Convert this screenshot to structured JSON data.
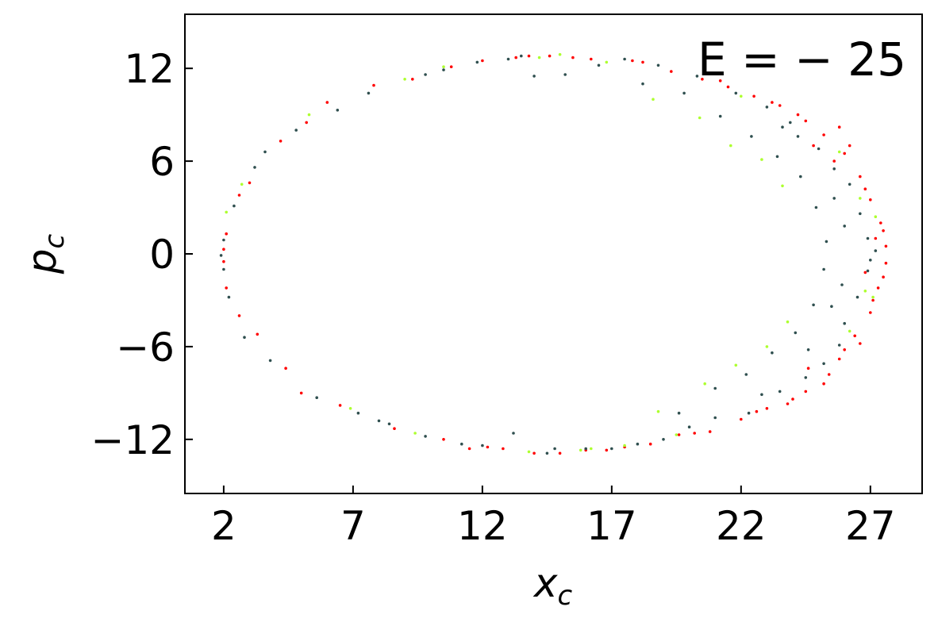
{
  "chart_data": {
    "type": "scatter",
    "xlabel": "x",
    "xlabel_sub": "c",
    "ylabel": "p",
    "ylabel_sub": "c",
    "annotation": "E = − 25",
    "xlim": [
      0.5,
      29
    ],
    "ylim": [
      -15.5,
      15.5
    ],
    "xticks": [
      2,
      7,
      12,
      17,
      22,
      27
    ],
    "yticks": [
      12,
      6,
      0,
      -6,
      -12
    ],
    "ytick_labels": [
      "12",
      "6",
      "0",
      "−6",
      "−12"
    ],
    "grid": false,
    "colors": {
      "red": "#ff0000",
      "dark": "#2f4f4f",
      "lime": "#adff2f"
    },
    "series": [
      {
        "color_key": "red",
        "points": [
          [
            2.0,
            0.3
          ],
          [
            2.0,
            -0.5
          ],
          [
            2.1,
            1.3
          ],
          [
            2.1,
            -2.2
          ],
          [
            2.6,
            3.8
          ],
          [
            2.6,
            -4.0
          ],
          [
            3.0,
            4.6
          ],
          [
            3.3,
            -5.2
          ],
          [
            4.2,
            7.3
          ],
          [
            4.4,
            -7.4
          ],
          [
            5.2,
            8.5
          ],
          [
            5.0,
            -9.0
          ],
          [
            6.0,
            9.8
          ],
          [
            6.5,
            -9.8
          ],
          [
            7.8,
            10.9
          ],
          [
            8.6,
            -11.3
          ],
          [
            9.3,
            11.3
          ],
          [
            10.5,
            -12.0
          ],
          [
            10.8,
            12.1
          ],
          [
            11.5,
            -12.6
          ],
          [
            12.0,
            12.5
          ],
          [
            12.8,
            -12.6
          ],
          [
            13.3,
            12.7
          ],
          [
            14.0,
            -12.9
          ],
          [
            14.6,
            12.8
          ],
          [
            15.0,
            -12.9
          ],
          [
            15.5,
            12.7
          ],
          [
            16.8,
            -12.7
          ],
          [
            16.2,
            12.6
          ],
          [
            17.5,
            -12.5
          ],
          [
            17.8,
            12.5
          ],
          [
            18.5,
            -12.3
          ],
          [
            19.3,
            11.8
          ],
          [
            19.6,
            -11.7
          ],
          [
            20.5,
            11.3
          ],
          [
            20.8,
            -11.5
          ],
          [
            21.5,
            10.8
          ],
          [
            22.0,
            -10.7
          ],
          [
            22.5,
            10.2
          ],
          [
            23.0,
            -10.0
          ],
          [
            23.5,
            9.6
          ],
          [
            24.0,
            -9.4
          ],
          [
            24.5,
            8.6
          ],
          [
            24.5,
            -8.9
          ],
          [
            25.2,
            7.7
          ],
          [
            25.4,
            -7.8
          ],
          [
            26.0,
            6.5
          ],
          [
            25.8,
            -6.8
          ],
          [
            26.6,
            5.0
          ],
          [
            26.4,
            -5.3
          ],
          [
            27.0,
            3.5
          ],
          [
            27.0,
            -3.8
          ],
          [
            27.4,
            2.0
          ],
          [
            27.3,
            -2.2
          ],
          [
            27.6,
            0.5
          ],
          [
            27.6,
            -0.6
          ],
          [
            27.2,
            1.0
          ],
          [
            26.8,
            -1.2
          ],
          [
            26.2,
            7.0
          ],
          [
            26.6,
            -5.8
          ],
          [
            25.8,
            8.2
          ],
          [
            25.2,
            -8.4
          ],
          [
            24.2,
            9.0
          ],
          [
            23.8,
            -9.7
          ],
          [
            23.2,
            9.8
          ],
          [
            22.6,
            -10.2
          ],
          [
            26.8,
            4.2
          ],
          [
            27.1,
            -3.0
          ],
          [
            27.5,
            1.5
          ],
          [
            27.5,
            -1.5
          ],
          [
            21.2,
            11.2
          ],
          [
            20.2,
            -11.6
          ],
          [
            18.2,
            12.4
          ],
          [
            16.0,
            -12.7
          ],
          [
            13.8,
            12.8
          ],
          [
            12.2,
            -12.5
          ],
          [
            25.6,
            6.0
          ],
          [
            26.0,
            -6.2
          ],
          [
            24.8,
            7.0
          ],
          [
            24.6,
            -7.4
          ]
        ]
      },
      {
        "color_key": "dark",
        "points": [
          [
            1.9,
            -0.1
          ],
          [
            2.0,
            -1.0
          ],
          [
            2.0,
            0.9
          ],
          [
            2.2,
            -2.8
          ],
          [
            2.4,
            3.1
          ],
          [
            2.8,
            -5.4
          ],
          [
            3.2,
            5.6
          ],
          [
            3.8,
            -6.9
          ],
          [
            3.6,
            6.6
          ],
          [
            5.6,
            -9.3
          ],
          [
            4.8,
            8.0
          ],
          [
            7.2,
            -10.3
          ],
          [
            6.4,
            9.3
          ],
          [
            8.4,
            -11.0
          ],
          [
            7.6,
            10.4
          ],
          [
            9.8,
            -11.8
          ],
          [
            9.8,
            11.6
          ],
          [
            12.0,
            -12.4
          ],
          [
            11.8,
            12.4
          ],
          [
            13.2,
            -11.6
          ],
          [
            13.0,
            12.6
          ],
          [
            14.0,
            11.5
          ],
          [
            14.5,
            -12.9
          ],
          [
            15.2,
            11.6
          ],
          [
            16.0,
            -12.6
          ],
          [
            16.5,
            12.2
          ],
          [
            18.0,
            -12.3
          ],
          [
            17.5,
            12.6
          ],
          [
            19.0,
            -12.0
          ],
          [
            18.8,
            12.2
          ],
          [
            20.0,
            -11.2
          ],
          [
            20.3,
            11.5
          ],
          [
            21.0,
            -10.6
          ],
          [
            21.8,
            10.4
          ],
          [
            22.3,
            -10.3
          ],
          [
            23.0,
            9.5
          ],
          [
            22.8,
            -9.1
          ],
          [
            23.6,
            8.2
          ],
          [
            23.5,
            -8.9
          ],
          [
            24.2,
            7.6
          ],
          [
            24.5,
            -8.0
          ],
          [
            25.0,
            6.8
          ],
          [
            25.2,
            -7.1
          ],
          [
            25.6,
            5.5
          ],
          [
            25.8,
            -5.9
          ],
          [
            26.2,
            4.5
          ],
          [
            26.0,
            -4.5
          ],
          [
            26.6,
            2.6
          ],
          [
            26.5,
            -2.8
          ],
          [
            26.9,
            1.0
          ],
          [
            26.9,
            -1.1
          ],
          [
            25.3,
            0.8
          ],
          [
            25.2,
            -1.0
          ],
          [
            24.9,
            3.0
          ],
          [
            24.8,
            -3.3
          ],
          [
            24.3,
            5.0
          ],
          [
            24.1,
            -5.1
          ],
          [
            23.4,
            6.3
          ],
          [
            23.2,
            -6.4
          ],
          [
            22.4,
            7.6
          ],
          [
            22.2,
            -7.8
          ],
          [
            21.2,
            8.9
          ],
          [
            21.0,
            -8.7
          ],
          [
            19.8,
            10.4
          ],
          [
            19.6,
            -10.3
          ],
          [
            25.9,
            -2.0
          ],
          [
            26.0,
            1.8
          ],
          [
            27.2,
            0.2
          ],
          [
            27.0,
            -0.4
          ],
          [
            25.5,
            -3.4
          ],
          [
            25.6,
            3.6
          ],
          [
            23.9,
            8.5
          ],
          [
            24.6,
            -6.2
          ],
          [
            18.2,
            11.0
          ],
          [
            17.0,
            -12.6
          ],
          [
            14.8,
            -12.6
          ],
          [
            13.5,
            12.8
          ],
          [
            11.2,
            -12.3
          ],
          [
            10.5,
            11.9
          ],
          [
            8.0,
            -10.8
          ]
        ]
      },
      {
        "color_key": "lime",
        "points": [
          [
            2.1,
            2.7
          ],
          [
            2.7,
            4.5
          ],
          [
            5.3,
            9.0
          ],
          [
            6.9,
            -10.0
          ],
          [
            9.0,
            11.3
          ],
          [
            9.4,
            -11.6
          ],
          [
            10.5,
            12.1
          ],
          [
            13.8,
            -12.8
          ],
          [
            15.0,
            12.9
          ],
          [
            15.8,
            -12.7
          ],
          [
            16.8,
            12.4
          ],
          [
            17.5,
            -12.4
          ],
          [
            18.6,
            10.0
          ],
          [
            18.8,
            -10.2
          ],
          [
            20.4,
            8.8
          ],
          [
            20.6,
            -8.4
          ],
          [
            21.6,
            7.0
          ],
          [
            21.8,
            -7.2
          ],
          [
            22.8,
            6.1
          ],
          [
            23.0,
            -6.0
          ],
          [
            23.6,
            4.4
          ],
          [
            23.8,
            -4.4
          ],
          [
            26.6,
            3.6
          ],
          [
            26.8,
            -2.4
          ],
          [
            27.2,
            2.4
          ],
          [
            27.1,
            -2.8
          ],
          [
            26.2,
            -5.0
          ],
          [
            25.8,
            6.6
          ],
          [
            22.0,
            10.2
          ],
          [
            19.5,
            -11.7
          ],
          [
            14.2,
            12.7
          ],
          [
            16.2,
            -12.6
          ]
        ]
      }
    ]
  }
}
